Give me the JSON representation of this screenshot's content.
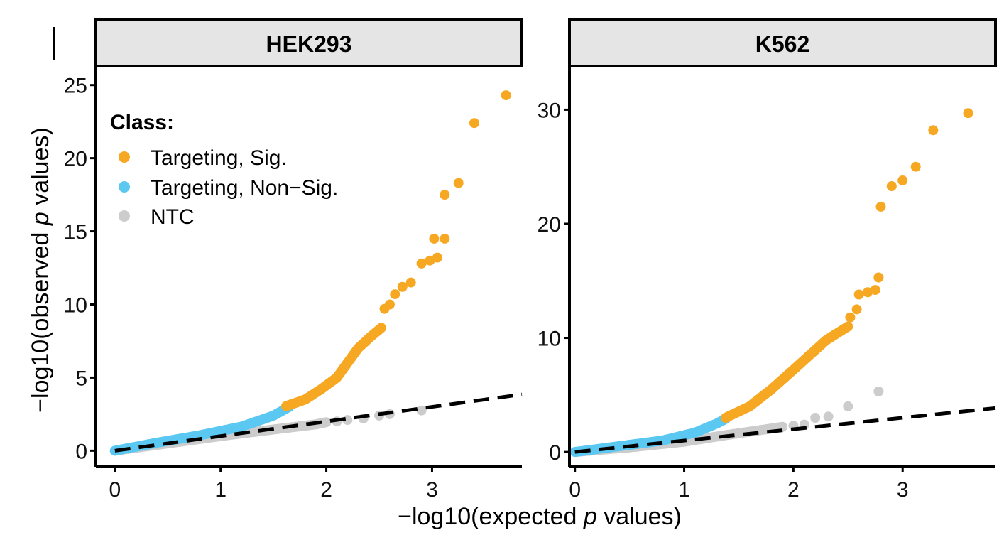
{
  "chart_data": {
    "type": "scatter",
    "xlabel_parts": [
      "−log10(expected ",
      "p",
      " values)"
    ],
    "ylabel_parts": [
      "−log10(observed  ",
      "p",
      " values)"
    ],
    "legend": {
      "title": "Class:",
      "entries": [
        {
          "label": "Targeting, Sig.",
          "color": "#F7A823"
        },
        {
          "label": "Targeting, Non−Sig.",
          "color": "#5BC8F2"
        },
        {
          "label": "NTC",
          "color": "#CCCCCC"
        }
      ]
    },
    "panels": [
      {
        "title": "HEK293",
        "xlim": [
          -0.18,
          3.85
        ],
        "ylim": [
          -1.1,
          26.2
        ],
        "xticks": [
          0,
          1,
          2,
          3
        ],
        "yticks": [
          0,
          5,
          10,
          15,
          20,
          25
        ],
        "reference_line": {
          "slope": 1,
          "intercept": 0,
          "style": "dashed"
        },
        "series": [
          {
            "name": "NTC",
            "color": "#CCCCCC",
            "curve": [
              [
                0,
                0
              ],
              [
                0.5,
                0.5
              ],
              [
                1.0,
                1.0
              ],
              [
                1.5,
                1.45
              ],
              [
                1.9,
                1.8
              ],
              [
                2.0,
                1.95
              ]
            ],
            "outliers": [
              [
                2.1,
                2.0
              ],
              [
                2.2,
                2.1
              ],
              [
                2.35,
                2.2
              ],
              [
                2.5,
                2.4
              ],
              [
                2.6,
                2.5
              ],
              [
                2.9,
                2.75
              ]
            ]
          },
          {
            "name": "Targeting, Non−Sig.",
            "color": "#5BC8F2",
            "curve": [
              [
                0,
                0
              ],
              [
                0.4,
                0.55
              ],
              [
                0.8,
                1.05
              ],
              [
                1.2,
                1.65
              ],
              [
                1.5,
                2.4
              ],
              [
                1.65,
                3.0
              ]
            ]
          },
          {
            "name": "Targeting, Sig.",
            "color": "#F7A823",
            "curve": [
              [
                1.62,
                3.05
              ],
              [
                1.8,
                3.5
              ],
              [
                1.95,
                4.2
              ],
              [
                2.1,
                5.0
              ],
              [
                2.2,
                6.0
              ],
              [
                2.3,
                7.0
              ],
              [
                2.42,
                7.8
              ],
              [
                2.52,
                8.4
              ]
            ],
            "outliers": [
              [
                2.55,
                9.7
              ],
              [
                2.6,
                10.0
              ],
              [
                2.65,
                10.7
              ],
              [
                2.72,
                11.2
              ],
              [
                2.8,
                11.5
              ],
              [
                2.9,
                12.8
              ],
              [
                2.98,
                13.0
              ],
              [
                3.05,
                13.2
              ],
              [
                3.02,
                14.5
              ],
              [
                3.12,
                14.5
              ],
              [
                3.12,
                17.5
              ],
              [
                3.25,
                18.3
              ],
              [
                3.4,
                22.4
              ],
              [
                3.7,
                24.3
              ]
            ]
          }
        ]
      },
      {
        "title": "K562",
        "xlim": [
          -0.05,
          3.85
        ],
        "ylim": [
          -1.3,
          33.7
        ],
        "xticks": [
          0,
          1,
          2,
          3
        ],
        "yticks": [
          0,
          10,
          20,
          30
        ],
        "reference_line": {
          "slope": 1,
          "intercept": 0,
          "style": "dashed"
        },
        "series": [
          {
            "name": "NTC",
            "color": "#CCCCCC",
            "curve": [
              [
                0,
                0
              ],
              [
                0.5,
                0.4
              ],
              [
                1.0,
                0.9
              ],
              [
                1.4,
                1.5
              ],
              [
                1.9,
                2.2
              ]
            ],
            "outliers": [
              [
                2.0,
                2.3
              ],
              [
                2.1,
                2.4
              ],
              [
                2.2,
                3.0
              ],
              [
                2.32,
                3.1
              ],
              [
                2.5,
                4.0
              ],
              [
                2.78,
                5.3
              ]
            ]
          },
          {
            "name": "Targeting, Non−Sig.",
            "color": "#5BC8F2",
            "curve": [
              [
                0,
                0
              ],
              [
                0.4,
                0.5
              ],
              [
                0.8,
                1.0
              ],
              [
                1.1,
                1.7
              ],
              [
                1.3,
                2.5
              ],
              [
                1.38,
                2.9
              ]
            ]
          },
          {
            "name": "Targeting, Sig.",
            "color": "#F7A823",
            "curve": [
              [
                1.38,
                3.0
              ],
              [
                1.6,
                4.0
              ],
              [
                1.8,
                5.5
              ],
              [
                2.0,
                7.2
              ],
              [
                2.15,
                8.5
              ],
              [
                2.3,
                9.8
              ],
              [
                2.4,
                10.4
              ],
              [
                2.5,
                11.0
              ]
            ],
            "outliers": [
              [
                2.52,
                11.8
              ],
              [
                2.58,
                12.5
              ],
              [
                2.6,
                13.8
              ],
              [
                2.68,
                14.0
              ],
              [
                2.75,
                14.2
              ],
              [
                2.78,
                15.3
              ],
              [
                2.8,
                21.5
              ],
              [
                2.9,
                23.3
              ],
              [
                3.0,
                23.8
              ],
              [
                3.12,
                25.0
              ],
              [
                3.28,
                28.2
              ],
              [
                3.6,
                29.7
              ]
            ]
          }
        ]
      }
    ]
  }
}
